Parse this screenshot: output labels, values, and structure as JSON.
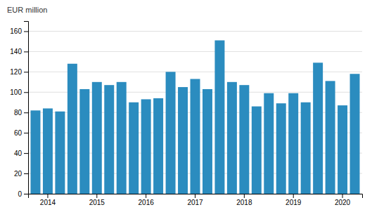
{
  "chart_data": {
    "type": "bar",
    "ylabel": "EUR million",
    "categories": [
      null,
      "2014",
      null,
      null,
      null,
      "2015",
      null,
      null,
      null,
      "2016",
      null,
      null,
      null,
      "2017",
      null,
      null,
      null,
      "2018",
      null,
      null,
      null,
      "2019",
      null,
      null,
      null,
      "2020",
      null
    ],
    "values": [
      82,
      84,
      81,
      128,
      103,
      110,
      107,
      110,
      90,
      93,
      94,
      120,
      105,
      113,
      103,
      151,
      110,
      107,
      86,
      99,
      89,
      99,
      90,
      129,
      111,
      87,
      118
    ],
    "color": "#2b8cbf",
    "ylim": [
      0,
      170
    ],
    "yticks": [
      0,
      20,
      40,
      60,
      80,
      100,
      120,
      140,
      160
    ],
    "grid": true
  }
}
